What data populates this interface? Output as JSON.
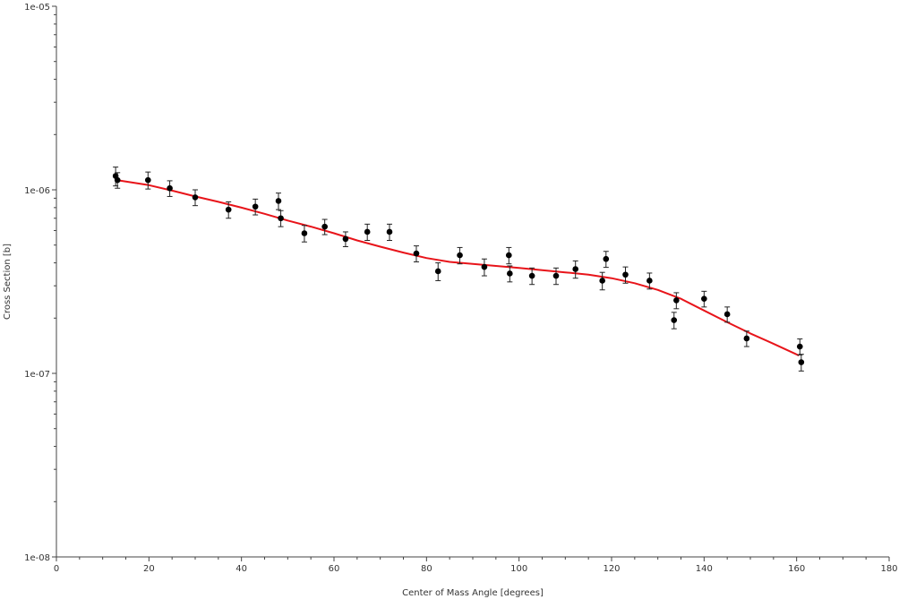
{
  "chart_data": {
    "type": "scatter",
    "xlabel": "Center of Mass Angle [degrees]",
    "ylabel": "Cross Section [b]",
    "xlim": [
      0,
      180
    ],
    "ylim": [
      1e-08,
      1e-05
    ],
    "yscale": "log",
    "x_ticks": [
      0,
      20,
      40,
      60,
      80,
      100,
      120,
      140,
      160,
      180
    ],
    "x_tick_labels": [
      "0",
      "20",
      "40",
      "60",
      "80",
      "100",
      "120",
      "140",
      "160",
      "180"
    ],
    "y_ticks": [
      1e-08,
      1e-07,
      1e-06,
      1e-05
    ],
    "y_tick_labels": [
      "1e-08",
      "1e-07",
      "1e-06",
      "1e-05"
    ],
    "grid": false,
    "series": [
      {
        "kind": "points-with-error-bars",
        "color": "#000000",
        "x": [
          12.8,
          13.2,
          19.8,
          24.5,
          30.0,
          37.2,
          43.0,
          48.0,
          48.5,
          53.6,
          58.0,
          62.5,
          67.2,
          72.0,
          77.8,
          82.5,
          87.2,
          92.5,
          97.8,
          98.0,
          102.8,
          108.0,
          112.2,
          118.0,
          118.8,
          123.0,
          128.2,
          133.5,
          134.0,
          140.0,
          145.0,
          149.2,
          160.7,
          161.0
        ],
        "y": [
          1.19e-06,
          1.13e-06,
          1.13e-06,
          1.02e-06,
          9.1e-07,
          7.8e-07,
          8.1e-07,
          8.7e-07,
          7e-07,
          5.8e-07,
          6.3e-07,
          5.4e-07,
          5.9e-07,
          5.9e-07,
          4.5e-07,
          3.6e-07,
          4.4e-07,
          3.8e-07,
          4.4e-07,
          3.5e-07,
          3.4e-07,
          3.4e-07,
          3.7e-07,
          3.2e-07,
          4.2e-07,
          3.45e-07,
          3.2e-07,
          1.95e-07,
          2.5e-07,
          2.55e-07,
          2.1e-07,
          1.55e-07,
          1.4e-07,
          1.15e-07
        ],
        "yerr": [
          1.4e-07,
          1.1e-07,
          1.2e-07,
          1e-07,
          9e-08,
          8e-08,
          8e-08,
          9e-08,
          7e-08,
          6e-08,
          6e-08,
          5e-08,
          6e-08,
          6e-08,
          4.5e-08,
          4e-08,
          4.5e-08,
          4e-08,
          4.5e-08,
          3.5e-08,
          3.5e-08,
          3.5e-08,
          4e-08,
          3.5e-08,
          4.2e-08,
          3.5e-08,
          3.2e-08,
          2e-08,
          2.5e-08,
          2.5e-08,
          2e-08,
          1.5e-08,
          1.4e-08,
          1.2e-08
        ]
      },
      {
        "kind": "curve",
        "color": "#e8141a",
        "x": [
          13,
          20,
          25,
          30,
          35,
          40,
          45,
          50,
          55,
          60,
          65,
          70,
          75,
          80,
          85,
          90,
          95,
          100,
          105,
          110,
          115,
          120,
          125,
          130,
          135,
          140,
          145,
          150,
          155,
          160.5
        ],
        "y": [
          1.13e-06,
          1.06e-06,
          9.9e-07,
          9.2e-07,
          8.6e-07,
          8e-07,
          7.4e-07,
          6.8e-07,
          6.3e-07,
          5.8e-07,
          5.3e-07,
          4.9e-07,
          4.55e-07,
          4.25e-07,
          4.05e-07,
          3.95e-07,
          3.85e-07,
          3.75e-07,
          3.65e-07,
          3.55e-07,
          3.45e-07,
          3.3e-07,
          3.1e-07,
          2.85e-07,
          2.55e-07,
          2.2e-07,
          1.9e-07,
          1.65e-07,
          1.45e-07,
          1.25e-07
        ]
      }
    ]
  }
}
